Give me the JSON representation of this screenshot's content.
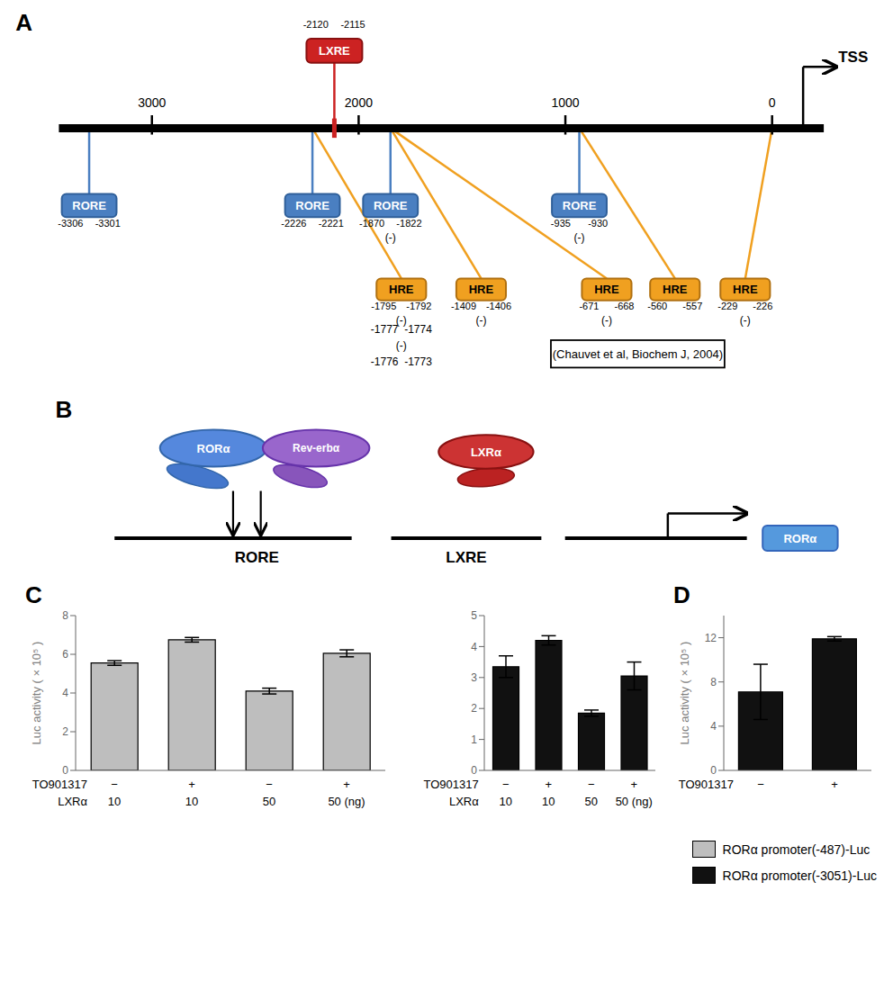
{
  "chart_data": [
    {
      "type": "diagram",
      "title": "A",
      "annotations": {
        "axis_labels": [
          "3000",
          "2000",
          "1000",
          "0"
        ],
        "tss": "TSS",
        "sites": [
          {
            "text": "LXRE",
            "color": "#cc2222",
            "labels": [
              "-2120",
              "-2115"
            ]
          },
          {
            "text": "RORE",
            "color": "#4a7fc1",
            "labels": [
              "-3306",
              "-3301"
            ]
          },
          {
            "text": "RORE",
            "color": "#4a7fc1",
            "labels": [
              "-2226",
              "-2221"
            ]
          },
          {
            "text": "RORE",
            "color": "#4a7fc1",
            "labels": [
              "-1870",
              "-1822"
            ],
            "note": "(-)"
          },
          {
            "text": "RORE",
            "color": "#4a7fc1",
            "labels": [
              "-935",
              "-930"
            ],
            "note": "(-)"
          },
          {
            "text": "HRE",
            "color": "#f0a020",
            "labels": [
              "-1795",
              "-1792"
            ],
            "note": "(-)"
          },
          {
            "text": "HRE",
            "color": "#f0a020",
            "labels": [
              "-1409",
              "-1406"
            ],
            "note": "(-)"
          },
          {
            "text": "HRE",
            "color": "#f0a020",
            "labels": [
              "-671",
              "-668"
            ],
            "note": "(-)"
          },
          {
            "text": "HRE",
            "color": "#f0a020",
            "labels": [
              "-560",
              "-557"
            ]
          },
          {
            "text": "HRE",
            "color": "#f0a020",
            "labels": [
              "-229",
              "-226"
            ],
            "note": "(-)"
          }
        ],
        "extra": [
          "-1777  -1774",
          "(-)",
          "-1776  -1773"
        ],
        "reference": "(Chauvet et al, Biochem J, 2004)"
      }
    },
    {
      "type": "diagram",
      "title": "B",
      "annotations": {
        "promoter_labels": [
          "RORE",
          "LXRE"
        ],
        "gene": {
          "text": "RORα",
          "color": "#5599dd"
        },
        "proteins": [
          {
            "text": "RORα",
            "color": "#5588dd"
          },
          {
            "text": "Rev-erbα",
            "color": "#9966cc"
          },
          {
            "text": "LXRα",
            "color": "#cc3333"
          }
        ]
      }
    },
    {
      "type": "bar",
      "title": "C",
      "ylabel": "Luc activity ( × 10⁵ )",
      "category_rows": [
        {
          "label": "TO901317",
          "categories": [
            "−",
            "+",
            "−",
            "+"
          ]
        },
        {
          "label": "LXRα",
          "categories": [
            "10",
            "10",
            "50",
            "50 (ng)"
          ]
        }
      ],
      "series": [
        {
          "name": "RORα promoter(-487)-Luc",
          "color": "#bebebe",
          "values": [
            5.55,
            6.75,
            4.1,
            6.05
          ],
          "errors": [
            0.12,
            0.12,
            0.15,
            0.18
          ]
        }
      ],
      "ylim": [
        0,
        8
      ],
      "yticks": [
        0,
        2,
        4,
        6,
        8
      ],
      "grid": false,
      "legend": "lower right"
    },
    {
      "type": "bar",
      "category_rows": [
        {
          "label": "TO901317",
          "categories": [
            "−",
            "+",
            "−",
            "+"
          ]
        },
        {
          "label": "LXRα",
          "categories": [
            "10",
            "10",
            "50",
            "50 (ng)"
          ]
        }
      ],
      "series": [
        {
          "name": "RORα promoter(-3051)-Luc",
          "color": "#111111",
          "values": [
            3.35,
            4.2,
            1.85,
            3.05
          ],
          "errors": [
            0.35,
            0.15,
            0.1,
            0.45
          ]
        }
      ],
      "ylim": [
        0,
        5
      ],
      "yticks": [
        0,
        1,
        2,
        3,
        4,
        5
      ],
      "grid": false,
      "legend": "lower right"
    },
    {
      "type": "bar",
      "title": "D",
      "ylabel": "Luc activity ( × 10⁵ )",
      "category_rows": [
        {
          "label": "TO901317",
          "categories": [
            "−",
            "+"
          ]
        }
      ],
      "series": [
        {
          "color": "#111111",
          "values": [
            7.1,
            11.9
          ],
          "errors": [
            2.5,
            0.2
          ]
        }
      ],
      "ylim": [
        0,
        14
      ],
      "yticks": [
        0,
        4,
        8,
        12
      ],
      "grid": false
    }
  ]
}
